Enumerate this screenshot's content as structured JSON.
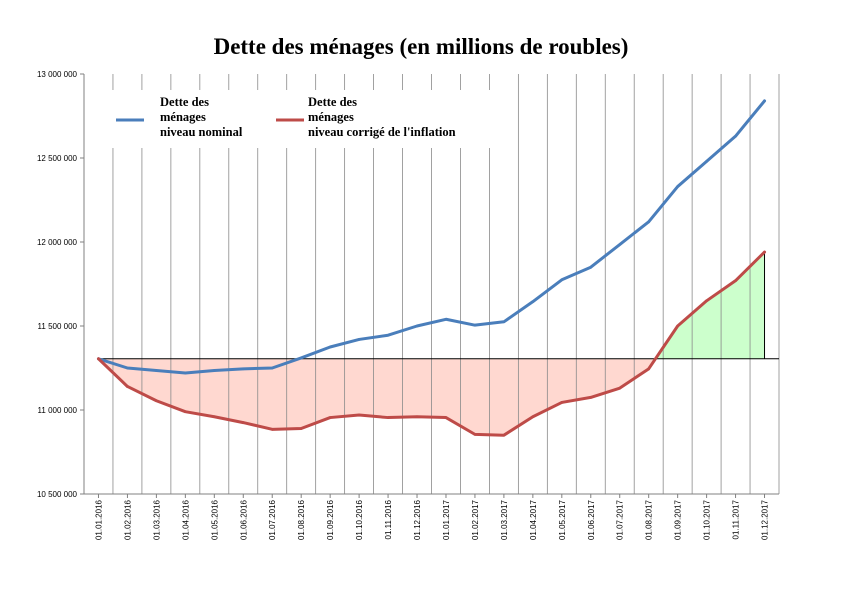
{
  "chart_data": {
    "type": "line",
    "title": "Dette des ménages (en millions de roubles)",
    "xlabel": "",
    "ylabel": "",
    "categories": [
      "01.01.2016",
      "01.02.2016",
      "01.03.2016",
      "01.04.2016",
      "01.05.2016",
      "01.06.2016",
      "01.07.2016",
      "01.08.2016",
      "01.09.2016",
      "01.10.2016",
      "01.11.2016",
      "01.12.2016",
      "01.01.2017",
      "01.02.2017",
      "01.03.2017",
      "01.04.2017",
      "01.05.2017",
      "01.06.2017",
      "01.07.2017",
      "01.08.2017",
      "01.09.2017",
      "01.10.2017",
      "01.11.2017",
      "01.12.2017"
    ],
    "ylim": [
      10500000,
      13000000
    ],
    "yticks": [
      10500000,
      11000000,
      11500000,
      12000000,
      12500000,
      13000000
    ],
    "ytick_labels": [
      "10 500 000",
      "11 000 000",
      "11 500 000",
      "12 000 000",
      "12 500 000",
      "13 000 000"
    ],
    "grid": "vertical",
    "reference_line": 11305000,
    "series": [
      {
        "name": "Dette des ménages niveau nominal",
        "legend_lines": [
          "Dette des",
          "ménages",
          "niveau nominal"
        ],
        "color": "#4a7ebb",
        "values": [
          11305000,
          11250000,
          11235000,
          11220000,
          11235000,
          11245000,
          11250000,
          11310000,
          11375000,
          11420000,
          11445000,
          11500000,
          11540000,
          11505000,
          11525000,
          11645000,
          11775000,
          11850000,
          11985000,
          12120000,
          12330000,
          12480000,
          12630000,
          12840000
        ]
      },
      {
        "name": "Dette des ménages niveau corrigé de l'inflation",
        "legend_lines": [
          "Dette des",
          "ménages",
          "niveau corrigé de l'inflation"
        ],
        "color": "#be4b48",
        "values": [
          11305000,
          11140000,
          11055000,
          10990000,
          10960000,
          10925000,
          10885000,
          10890000,
          10955000,
          10970000,
          10955000,
          10960000,
          10955000,
          10855000,
          10850000,
          10960000,
          11045000,
          11075000,
          11130000,
          11245000,
          11500000,
          11650000,
          11770000,
          11940000
        ]
      }
    ],
    "fill_below_color": "#ffd8d0",
    "fill_above_color": "#ccffcc",
    "legend_position": "top-left"
  }
}
